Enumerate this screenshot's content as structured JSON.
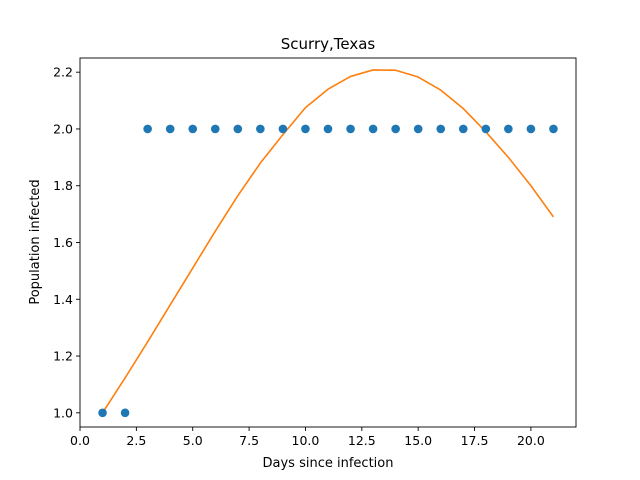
{
  "chart_data": {
    "type": "scatter",
    "title": "Scurry,Texas",
    "xlabel": "Days since infection",
    "ylabel": "Population infected",
    "xlim": [
      0.0,
      22.0
    ],
    "ylim": [
      0.95,
      2.25
    ],
    "x_ticks": [
      0.0,
      2.5,
      5.0,
      7.5,
      10.0,
      12.5,
      15.0,
      17.5,
      20.0
    ],
    "x_tick_labels": [
      "0.0",
      "2.5",
      "5.0",
      "7.5",
      "10.0",
      "12.5",
      "15.0",
      "17.5",
      "20.0"
    ],
    "y_ticks": [
      1.0,
      1.2,
      1.4,
      1.6,
      1.8,
      2.0,
      2.2
    ],
    "y_tick_labels": [
      "1.0",
      "1.2",
      "1.4",
      "1.6",
      "1.8",
      "2.0",
      "2.2"
    ],
    "grid": false,
    "legend": "none",
    "series": [
      {
        "type": "scatter",
        "color": "#1f77b4",
        "x": [
          1,
          2,
          3,
          4,
          5,
          6,
          7,
          8,
          9,
          10,
          11,
          12,
          13,
          14,
          15,
          16,
          17,
          18,
          19,
          20,
          21
        ],
        "y": [
          1.0,
          1.0,
          2.0,
          2.0,
          2.0,
          2.0,
          2.0,
          2.0,
          2.0,
          2.0,
          2.0,
          2.0,
          2.0,
          2.0,
          2.0,
          2.0,
          2.0,
          2.0,
          2.0,
          2.0,
          2.0
        ]
      },
      {
        "type": "line",
        "color": "#ff7f0e",
        "x": [
          1,
          2,
          3,
          4,
          5,
          6,
          7,
          8,
          9,
          10,
          11,
          12,
          13,
          14,
          15,
          16,
          17,
          18,
          19,
          20,
          21
        ],
        "y": [
          1.0,
          1.123,
          1.25,
          1.38,
          1.51,
          1.64,
          1.765,
          1.88,
          1.98,
          2.075,
          2.14,
          2.185,
          2.208,
          2.207,
          2.183,
          2.137,
          2.072,
          1.99,
          1.9,
          1.8,
          1.69
        ]
      }
    ]
  }
}
